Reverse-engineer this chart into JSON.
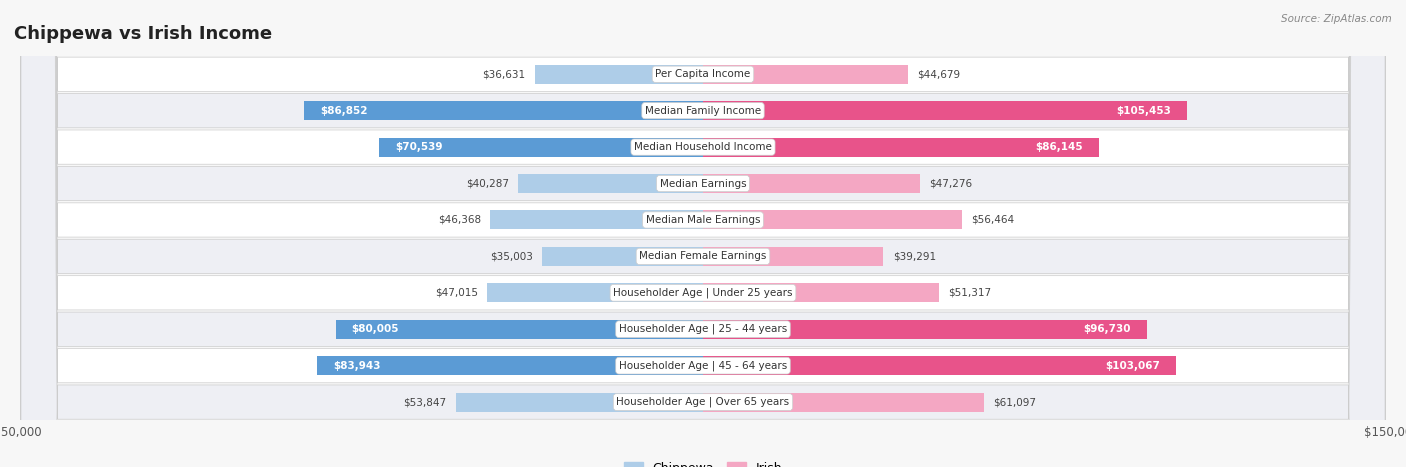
{
  "title": "Chippewa vs Irish Income",
  "source": "Source: ZipAtlas.com",
  "categories": [
    "Per Capita Income",
    "Median Family Income",
    "Median Household Income",
    "Median Earnings",
    "Median Male Earnings",
    "Median Female Earnings",
    "Householder Age | Under 25 years",
    "Householder Age | 25 - 44 years",
    "Householder Age | 45 - 64 years",
    "Householder Age | Over 65 years"
  ],
  "chippewa_values": [
    36631,
    86852,
    70539,
    40287,
    46368,
    35003,
    47015,
    80005,
    83943,
    53847
  ],
  "irish_values": [
    44679,
    105453,
    86145,
    47276,
    56464,
    39291,
    51317,
    96730,
    103067,
    61097
  ],
  "chippewa_light": "#aecde8",
  "chippewa_dark": "#5b9bd5",
  "irish_light": "#f4a7c3",
  "irish_dark": "#e8538a",
  "dark_threshold": 65000,
  "max_value": 150000,
  "title_fontsize": 13,
  "label_fontsize": 7.5,
  "value_fontsize": 7.5,
  "bar_height": 0.52,
  "legend_chippewa": "Chippewa",
  "legend_irish": "Irish",
  "row_colors": [
    "#ffffff",
    "#eeeff4"
  ],
  "grid_color": "#cccccc",
  "bg_color": "#f7f7f7"
}
